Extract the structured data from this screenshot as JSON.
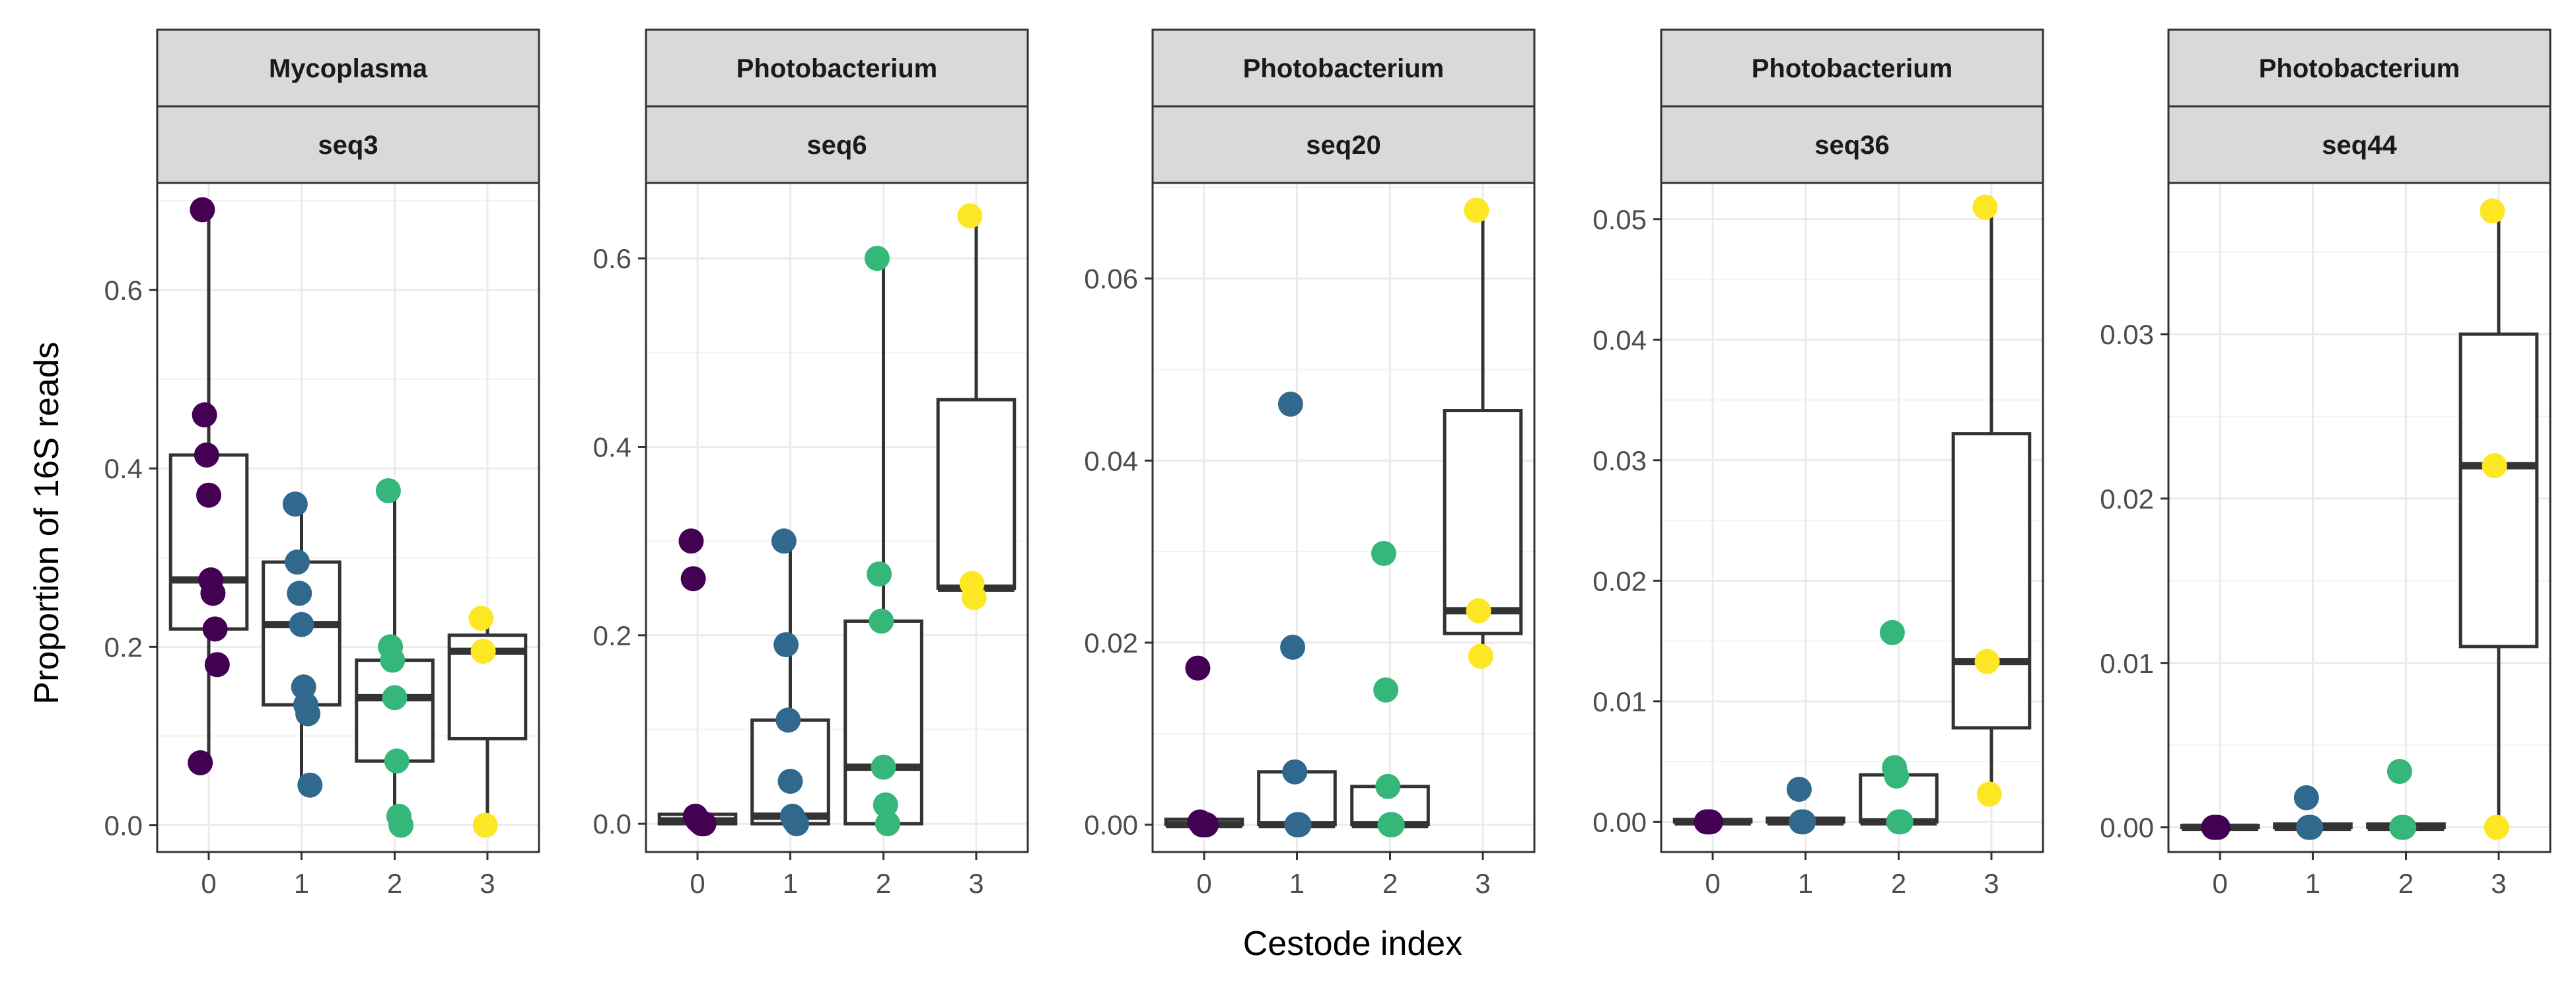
{
  "chart_data": {
    "type": "box+scatter",
    "xlabel": "Cestode index",
    "ylabel": "Proportion of 16S reads",
    "categories": [
      "0",
      "1",
      "2",
      "3"
    ],
    "colors": {
      "0": "#440154",
      "1": "#31688e",
      "2": "#35b779",
      "3": "#fde725"
    },
    "grid": true,
    "legend": "none",
    "panels": [
      {
        "genus": "Mycoplasma",
        "seq": "seq3",
        "ylim": [
          -0.03,
          0.72
        ],
        "yticks": [
          0.0,
          0.2,
          0.4,
          0.6
        ],
        "yticklabels": [
          "0.0",
          "0.2",
          "0.4",
          "0.6"
        ],
        "boxes": [
          {
            "group": "0",
            "min": 0.07,
            "q1": 0.22,
            "median": 0.275,
            "q3": 0.415,
            "max": 0.69
          },
          {
            "group": "1",
            "min": 0.045,
            "q1": 0.135,
            "median": 0.225,
            "q3": 0.295,
            "max": 0.36
          },
          {
            "group": "2",
            "min": 0.0,
            "q1": 0.072,
            "median": 0.143,
            "q3": 0.185,
            "max": 0.375
          },
          {
            "group": "3",
            "min": 0.0,
            "q1": 0.097,
            "median": 0.195,
            "q3": 0.213,
            "max": 0.232
          }
        ],
        "points": [
          {
            "group": "0",
            "x": 0,
            "y": 0.69
          },
          {
            "group": "0",
            "x": 0,
            "y": 0.46
          },
          {
            "group": "0",
            "x": 0,
            "y": 0.415
          },
          {
            "group": "0",
            "x": 0,
            "y": 0.37
          },
          {
            "group": "0",
            "x": 0,
            "y": 0.275
          },
          {
            "group": "0",
            "x": 0,
            "y": 0.26
          },
          {
            "group": "0",
            "x": 0,
            "y": 0.22
          },
          {
            "group": "0",
            "x": 0,
            "y": 0.18
          },
          {
            "group": "0",
            "x": 0,
            "y": 0.07
          },
          {
            "group": "1",
            "x": 1,
            "y": 0.36
          },
          {
            "group": "1",
            "x": 1,
            "y": 0.295
          },
          {
            "group": "1",
            "x": 1,
            "y": 0.26
          },
          {
            "group": "1",
            "x": 1,
            "y": 0.225
          },
          {
            "group": "1",
            "x": 1,
            "y": 0.155
          },
          {
            "group": "1",
            "x": 1,
            "y": 0.135
          },
          {
            "group": "1",
            "x": 1,
            "y": 0.125
          },
          {
            "group": "1",
            "x": 1,
            "y": 0.045
          },
          {
            "group": "2",
            "x": 2,
            "y": 0.375
          },
          {
            "group": "2",
            "x": 2,
            "y": 0.2
          },
          {
            "group": "2",
            "x": 2,
            "y": 0.185
          },
          {
            "group": "2",
            "x": 2,
            "y": 0.143
          },
          {
            "group": "2",
            "x": 2,
            "y": 0.072
          },
          {
            "group": "2",
            "x": 2,
            "y": 0.01
          },
          {
            "group": "2",
            "x": 2,
            "y": 0.0
          },
          {
            "group": "3",
            "x": 3,
            "y": 0.232
          },
          {
            "group": "3",
            "x": 3,
            "y": 0.195
          },
          {
            "group": "3",
            "x": 3,
            "y": 0.0
          }
        ]
      },
      {
        "genus": "Photobacterium",
        "seq": "seq6",
        "ylim": [
          -0.03,
          0.68
        ],
        "yticks": [
          0.0,
          0.2,
          0.4,
          0.6
        ],
        "yticklabels": [
          "0.0",
          "0.2",
          "0.4",
          "0.6"
        ],
        "boxes": [
          {
            "group": "0",
            "min": 0.0,
            "q1": 0.0,
            "median": 0.003,
            "q3": 0.01,
            "max": 0.01
          },
          {
            "group": "1",
            "min": 0.0,
            "q1": 0.0,
            "median": 0.008,
            "q3": 0.11,
            "max": 0.3
          },
          {
            "group": "2",
            "min": 0.0,
            "q1": 0.0,
            "median": 0.06,
            "q3": 0.215,
            "max": 0.6
          },
          {
            "group": "3",
            "min": 0.24,
            "q1": 0.25,
            "median": 0.25,
            "q3": 0.45,
            "max": 0.645
          }
        ],
        "points": [
          {
            "group": "0",
            "x": 0,
            "y": 0.3
          },
          {
            "group": "0",
            "x": 0,
            "y": 0.26
          },
          {
            "group": "0",
            "x": 0,
            "y": 0.008
          },
          {
            "group": "0",
            "x": 0,
            "y": 0.004
          },
          {
            "group": "0",
            "x": 0,
            "y": 0.002
          },
          {
            "group": "0",
            "x": 0,
            "y": 0.0
          },
          {
            "group": "0",
            "x": 0,
            "y": 0.0
          },
          {
            "group": "1",
            "x": 1,
            "y": 0.3
          },
          {
            "group": "1",
            "x": 1,
            "y": 0.19
          },
          {
            "group": "1",
            "x": 1,
            "y": 0.11
          },
          {
            "group": "1",
            "x": 1,
            "y": 0.045
          },
          {
            "group": "1",
            "x": 1,
            "y": 0.008
          },
          {
            "group": "1",
            "x": 1,
            "y": 0.003
          },
          {
            "group": "1",
            "x": 1,
            "y": 0.0
          },
          {
            "group": "2",
            "x": 2,
            "y": 0.6
          },
          {
            "group": "2",
            "x": 2,
            "y": 0.265
          },
          {
            "group": "2",
            "x": 2,
            "y": 0.215
          },
          {
            "group": "2",
            "x": 2,
            "y": 0.06
          },
          {
            "group": "2",
            "x": 2,
            "y": 0.02
          },
          {
            "group": "2",
            "x": 2,
            "y": 0.0
          },
          {
            "group": "3",
            "x": 3,
            "y": 0.645
          },
          {
            "group": "3",
            "x": 3,
            "y": 0.255
          },
          {
            "group": "3",
            "x": 3,
            "y": 0.24
          }
        ]
      },
      {
        "genus": "Photobacterium",
        "seq": "seq20",
        "ylim": [
          -0.003,
          0.0705
        ],
        "yticks": [
          0.0,
          0.02,
          0.04,
          0.06
        ],
        "yticklabels": [
          "0.00",
          "0.02",
          "0.04",
          "0.06"
        ],
        "boxes": [
          {
            "group": "0",
            "min": 0.0,
            "q1": 0.0,
            "median": 0.0,
            "q3": 0.0006,
            "max": 0.0006
          },
          {
            "group": "1",
            "min": 0.0,
            "q1": 0.0,
            "median": 0.0,
            "q3": 0.0058,
            "max": 0.0058
          },
          {
            "group": "2",
            "min": 0.0,
            "q1": 0.0,
            "median": 0.0,
            "q3": 0.0042,
            "max": 0.0042
          },
          {
            "group": "3",
            "min": 0.0185,
            "q1": 0.021,
            "median": 0.0235,
            "q3": 0.0455,
            "max": 0.0675
          }
        ],
        "points": [
          {
            "group": "0",
            "x": 0,
            "y": 0.0172
          },
          {
            "group": "0",
            "x": 0,
            "y": 0.0003
          },
          {
            "group": "0",
            "x": 0,
            "y": 0.0
          },
          {
            "group": "0",
            "x": 0,
            "y": 0.0
          },
          {
            "group": "0",
            "x": 0,
            "y": 0.0
          },
          {
            "group": "1",
            "x": 1,
            "y": 0.0462
          },
          {
            "group": "1",
            "x": 1,
            "y": 0.0195
          },
          {
            "group": "1",
            "x": 1,
            "y": 0.0058
          },
          {
            "group": "1",
            "x": 1,
            "y": 0.0
          },
          {
            "group": "1",
            "x": 1,
            "y": 0.0
          },
          {
            "group": "2",
            "x": 2,
            "y": 0.0298
          },
          {
            "group": "2",
            "x": 2,
            "y": 0.0148
          },
          {
            "group": "2",
            "x": 2,
            "y": 0.0042
          },
          {
            "group": "2",
            "x": 2,
            "y": 0.0
          },
          {
            "group": "2",
            "x": 2,
            "y": 0.0
          },
          {
            "group": "3",
            "x": 3,
            "y": 0.0675
          },
          {
            "group": "3",
            "x": 3,
            "y": 0.0235
          },
          {
            "group": "3",
            "x": 3,
            "y": 0.0185
          }
        ]
      },
      {
        "genus": "Photobacterium",
        "seq": "seq36",
        "ylim": [
          -0.0025,
          0.053
        ],
        "yticks": [
          0.0,
          0.01,
          0.02,
          0.03,
          0.04,
          0.05
        ],
        "yticklabels": [
          "0.00",
          "0.01",
          "0.02",
          "0.03",
          "0.04",
          "0.05"
        ],
        "boxes": [
          {
            "group": "0",
            "min": 0.0,
            "q1": 0.0,
            "median": 0.0,
            "q3": 0.0002,
            "max": 0.0002
          },
          {
            "group": "1",
            "min": 0.0,
            "q1": 0.0,
            "median": 0.0,
            "q3": 0.0003,
            "max": 0.0003
          },
          {
            "group": "2",
            "min": 0.0,
            "q1": 0.0,
            "median": 0.0,
            "q3": 0.0039,
            "max": 0.0039
          },
          {
            "group": "3",
            "min": 0.0023,
            "q1": 0.0078,
            "median": 0.0133,
            "q3": 0.0322,
            "max": 0.051
          }
        ],
        "points": [
          {
            "group": "0",
            "x": 0,
            "y": 0.0
          },
          {
            "group": "0",
            "x": 0,
            "y": 0.0
          },
          {
            "group": "0",
            "x": 0,
            "y": 0.0
          },
          {
            "group": "1",
            "x": 1,
            "y": 0.0027
          },
          {
            "group": "1",
            "x": 1,
            "y": 0.0
          },
          {
            "group": "1",
            "x": 1,
            "y": 0.0
          },
          {
            "group": "2",
            "x": 2,
            "y": 0.0157
          },
          {
            "group": "2",
            "x": 2,
            "y": 0.0045
          },
          {
            "group": "2",
            "x": 2,
            "y": 0.0038
          },
          {
            "group": "2",
            "x": 2,
            "y": 0.0
          },
          {
            "group": "2",
            "x": 2,
            "y": 0.0
          },
          {
            "group": "3",
            "x": 3,
            "y": 0.051
          },
          {
            "group": "3",
            "x": 3,
            "y": 0.0133
          },
          {
            "group": "3",
            "x": 3,
            "y": 0.0023
          }
        ]
      },
      {
        "genus": "Photobacterium",
        "seq": "seq44",
        "ylim": [
          -0.0015,
          0.0392
        ],
        "yticks": [
          0.0,
          0.01,
          0.02,
          0.03
        ],
        "yticklabels": [
          "0.00",
          "0.01",
          "0.02",
          "0.03"
        ],
        "boxes": [
          {
            "group": "0",
            "min": 0.0,
            "q1": 0.0,
            "median": 0.0,
            "q3": 0.0001,
            "max": 0.0001
          },
          {
            "group": "1",
            "min": 0.0,
            "q1": 0.0,
            "median": 0.0,
            "q3": 0.0002,
            "max": 0.0002
          },
          {
            "group": "2",
            "min": 0.0,
            "q1": 0.0,
            "median": 0.0,
            "q3": 0.0002,
            "max": 0.0002
          },
          {
            "group": "3",
            "min": 0.0,
            "q1": 0.011,
            "median": 0.022,
            "q3": 0.03,
            "max": 0.0375
          }
        ],
        "points": [
          {
            "group": "0",
            "x": 0,
            "y": 0.0
          },
          {
            "group": "0",
            "x": 0,
            "y": 0.0
          },
          {
            "group": "0",
            "x": 0,
            "y": 0.0
          },
          {
            "group": "1",
            "x": 1,
            "y": 0.0018
          },
          {
            "group": "1",
            "x": 1,
            "y": 0.0
          },
          {
            "group": "1",
            "x": 1,
            "y": 0.0
          },
          {
            "group": "2",
            "x": 2,
            "y": 0.0034
          },
          {
            "group": "2",
            "x": 2,
            "y": 0.0
          },
          {
            "group": "2",
            "x": 2,
            "y": 0.0
          },
          {
            "group": "3",
            "x": 3,
            "y": 0.0375
          },
          {
            "group": "3",
            "x": 3,
            "y": 0.022
          },
          {
            "group": "3",
            "x": 3,
            "y": 0.0
          }
        ]
      }
    ]
  }
}
